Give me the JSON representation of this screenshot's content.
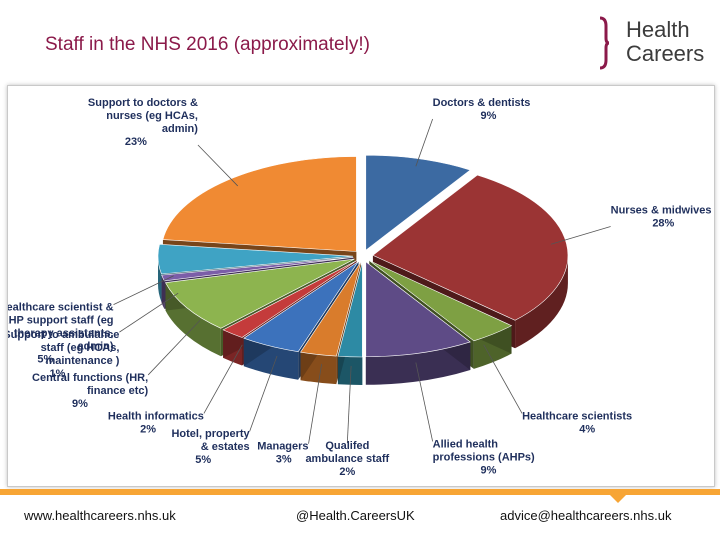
{
  "title": "Staff in the NHS 2016 (approximately!)",
  "logo": {
    "line1": "Health",
    "line2": "Careers",
    "bracket_color": "#8b1a4a"
  },
  "footer": {
    "left": "www.healthcareers.nhs.uk",
    "middle": "@Health.CareersUK",
    "right": "advice@healthcareers.nhs.uk",
    "accent_color": "#f7a535"
  },
  "chart_data": {
    "type": "pie",
    "title": "",
    "style": "3d-exploded",
    "slices": [
      {
        "lines": [
          "Doctors & dentists",
          "9%"
        ],
        "value": 9,
        "color": "#3c6aa2"
      },
      {
        "lines": [
          "Nurses & midwives",
          "28%"
        ],
        "value": 28,
        "color": "#9b3434"
      },
      {
        "lines": [
          "Healthcare scientists",
          "4%"
        ],
        "value": 4,
        "color": "#7ea043"
      },
      {
        "lines": [
          "Allied health",
          "professions (AHPs)",
          "9%"
        ],
        "value": 9,
        "color": "#5e4b86"
      },
      {
        "lines": [
          "Qualifed",
          "ambulance staff",
          "2%"
        ],
        "value": 2,
        "color": "#2d8aa4"
      },
      {
        "lines": [
          "Managers",
          "3%"
        ],
        "value": 3,
        "color": "#d97c2c"
      },
      {
        "lines": [
          "Hotel, property",
          "& estates",
          "5%"
        ],
        "value": 5,
        "color": "#3c72bc"
      },
      {
        "lines": [
          "Health informatics",
          "2%"
        ],
        "value": 2,
        "color": "#c43b3b"
      },
      {
        "lines": [
          "Central functions (HR,",
          "finance etc)",
          "9%"
        ],
        "value": 9,
        "color": "#8db44f"
      },
      {
        "lines": [
          "Support to ambulance",
          "staff (eg HCAs,",
          "maintenance )",
          "1%"
        ],
        "value": 1,
        "color": "#7b5ea8"
      },
      {
        "lines": [
          "Healthcare scientist &",
          "AHP support staff (eg",
          "therapy assistants,",
          "admin)",
          "5%"
        ],
        "value": 5,
        "color": "#3fa3c4"
      },
      {
        "lines": [
          "Support to doctors &",
          "nurses (eg HCAs,",
          "admin)",
          "23%"
        ],
        "value": 23,
        "color": "#f08a33"
      }
    ]
  }
}
